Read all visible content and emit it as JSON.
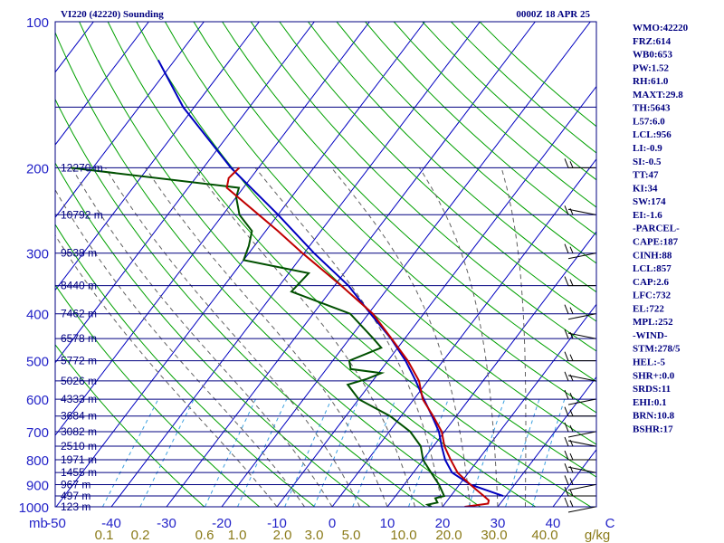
{
  "header": {
    "station": "VI220 (42220) Sounding",
    "time": "0000Z 18 APR 25"
  },
  "colors": {
    "isobar": "#000080",
    "isotherm": "#0000c0",
    "dry_adiabat": "#00a000",
    "moist_adiabat": "#606060",
    "mixing_ratio": "#3aa0e0",
    "temperature": "#c00000",
    "dewpoint": "#005000",
    "parcel": "#0000c0",
    "wind": "#000000",
    "text": "#000080",
    "axis_label": "#2323c8",
    "mr_label": "#8a7a18"
  },
  "chart_data": {
    "type": "skew-t log-p sounding",
    "pressure_axis": {
      "unit": "mb",
      "range": [
        1000,
        100
      ],
      "ticks": [
        100,
        200,
        300,
        400,
        500,
        600,
        700,
        800,
        900,
        1000
      ],
      "tick_labels": [
        "100",
        "200",
        "300",
        "400",
        "500",
        "600",
        "700",
        "800",
        "900",
        "1000"
      ]
    },
    "temperature_axis": {
      "unit": "C",
      "range": [
        -50,
        50
      ],
      "ticks": [
        -50,
        -40,
        -30,
        -20,
        -10,
        0,
        10,
        20,
        30,
        40,
        50
      ],
      "tick_labels": [
        "-50",
        "-40",
        "-30",
        "-20",
        "-10",
        "0",
        "10",
        "20",
        "30",
        "40"
      ],
      "corner_label": "mb"
    },
    "mixing_ratio_axis": {
      "unit_label": "g/kg",
      "values": [
        0.1,
        0.2,
        0.6,
        1.0,
        2.0,
        3.0,
        5.0,
        10.0,
        20.0,
        30.0,
        40.0
      ],
      "labels": [
        "0.1",
        "0.2",
        "0.6",
        "1.0",
        "2.0",
        "3.0",
        "5.0",
        "10.0",
        "20.0",
        "30.0",
        "40.0"
      ]
    },
    "height_labels": [
      {
        "p": 200,
        "text": "12270 m"
      },
      {
        "p": 250,
        "text": "10792 m"
      },
      {
        "p": 300,
        "text": "9538 m"
      },
      {
        "p": 350,
        "text": "8440 m"
      },
      {
        "p": 400,
        "text": "7462 m"
      },
      {
        "p": 450,
        "text": "6578 m"
      },
      {
        "p": 500,
        "text": "5772 m"
      },
      {
        "p": 550,
        "text": "5026 m"
      },
      {
        "p": 600,
        "text": "4333 m"
      },
      {
        "p": 650,
        "text": "3684 m"
      },
      {
        "p": 700,
        "text": "3082 m"
      },
      {
        "p": 750,
        "text": "2510 m"
      },
      {
        "p": 800,
        "text": "1971 m"
      },
      {
        "p": 850,
        "text": "1455 m"
      },
      {
        "p": 900,
        "text": "967 m"
      },
      {
        "p": 950,
        "text": "497 m"
      },
      {
        "p": 1000,
        "text": "123 m"
      }
    ],
    "extra_isobars": [
      150,
      250,
      350,
      450,
      550,
      650,
      750,
      850,
      950
    ],
    "isotherms": [
      -160,
      -150,
      -140,
      -130,
      -120,
      -110,
      -100,
      -90,
      -80,
      -70,
      -60,
      -50,
      -40,
      -30,
      -20,
      -10,
      0,
      10,
      20,
      30,
      40,
      50
    ],
    "dry_adiabats_K": [
      250,
      260,
      270,
      280,
      290,
      300,
      310,
      320,
      330,
      340,
      350,
      360,
      370,
      380,
      390,
      400,
      410,
      420,
      430,
      440,
      450
    ],
    "moist_adiabats_C": [
      -10,
      -5,
      0,
      5,
      10,
      15,
      20,
      25,
      30,
      35
    ],
    "temperature": {
      "name": "Temperature",
      "p": [
        1000,
        985,
        970,
        950,
        925,
        900,
        875,
        850,
        800,
        750,
        700,
        650,
        600,
        550,
        500,
        450,
        400,
        350,
        300,
        270,
        250,
        220,
        210,
        200
      ],
      "t": [
        24.0,
        27.8,
        27.5,
        26.0,
        24.0,
        22.0,
        20.0,
        18.0,
        15.0,
        12.0,
        9.5,
        5.8,
        1.6,
        -1.6,
        -6.4,
        -12.4,
        -19.2,
        -28.8,
        -40.3,
        -47.8,
        -53.5,
        -63.0,
        -64.0,
        -63.5
      ]
    },
    "dewpoint": {
      "name": "Dewpoint",
      "p": [
        1000,
        990,
        980,
        960,
        950,
        900,
        850,
        800,
        750,
        700,
        650,
        600,
        560,
        545,
        530,
        520,
        500,
        470,
        450,
        400,
        360,
        330,
        310,
        290,
        270,
        250,
        230,
        220,
        200
      ],
      "td": [
        18.0,
        17.0,
        18.5,
        17.5,
        18.8,
        16.3,
        13.2,
        10.0,
        7.7,
        3.8,
        -2.0,
        -10.0,
        -14.0,
        -11.3,
        -9.5,
        -15.6,
        -17.0,
        -13.0,
        -15.7,
        -23.3,
        -37.0,
        -36.4,
        -50.0,
        -51.0,
        -52.5,
        -57.0,
        -60.0,
        -60.8,
        -94.0
      ]
    },
    "parcel": {
      "name": "Parcel",
      "p": [
        950,
        900,
        850,
        800,
        750,
        700,
        650,
        600,
        550,
        500,
        450,
        400,
        350,
        300,
        250,
        200,
        150,
        120
      ],
      "t": [
        29.5,
        22.0,
        17.0,
        14.0,
        11.5,
        9.0,
        5.6,
        1.8,
        -2.2,
        -6.8,
        -12.5,
        -19.6,
        -27.5,
        -38.2,
        -50.0,
        -65.0,
        -82.0,
        -93.0
      ]
    },
    "wind_barbs_p": [
      200,
      250,
      300,
      350,
      400,
      450,
      500,
      550,
      600,
      650,
      700,
      750,
      800,
      850,
      900,
      950,
      1000
    ]
  },
  "indices": [
    "WMO:42220",
    "FRZ:614",
    "WB0:653",
    "PW:1.52",
    "RH:61.0",
    "MAXT:29.8",
    "TH:5643",
    "L57:6.0",
    "LCL:956",
    "LI:-0.9",
    "SI:-0.5",
    "TT:47",
    "KI:34",
    "SW:174",
    "EI:-1.6",
    "-PARCEL-",
    "CAPE:187",
    "CINH:88",
    "LCL:857",
    "CAP:2.6",
    "LFC:732",
    "EL:722",
    "MPL:252",
    "-WIND-",
    "STM:278/5",
    "HEL:-5",
    "SHR+:0.0",
    "SRDS:11",
    "EHI:0.1",
    "BRN:10.8",
    "BSHR:17"
  ]
}
